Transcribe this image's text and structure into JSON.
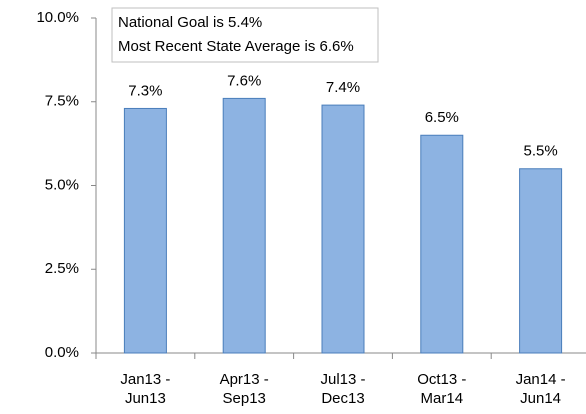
{
  "chart_data": {
    "type": "bar",
    "categories": [
      "Jan13 - Jun13",
      "Apr13 - Sep13",
      "Jul13 - Dec13",
      "Oct13 - Mar14",
      "Jan14 - Jun14"
    ],
    "values": [
      7.3,
      7.6,
      7.4,
      6.5,
      5.5
    ],
    "value_labels": [
      "7.3%",
      "7.6%",
      "7.4%",
      "6.5%",
      "5.5%"
    ],
    "color": "#8db3e2",
    "ylim": [
      0,
      10
    ],
    "yticks": [
      {
        "value": 0,
        "label": "0.0%"
      },
      {
        "value": 2.5,
        "label": "2.5%"
      },
      {
        "value": 5,
        "label": "5.0%"
      },
      {
        "value": 7.5,
        "label": "7.5%"
      },
      {
        "value": 10,
        "label": "10.0%"
      }
    ],
    "annotations": [
      "National Goal is 5.4%",
      "Most Recent State Average is 6.6%"
    ]
  }
}
